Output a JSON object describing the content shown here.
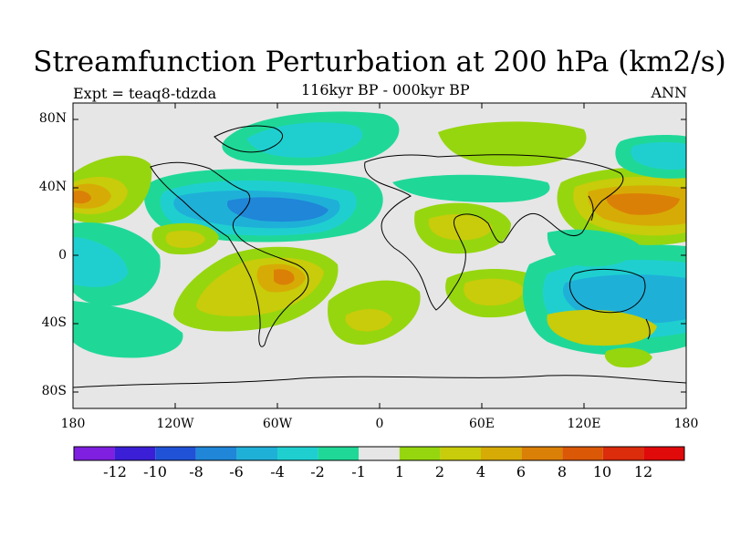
{
  "title": "Streamfunction Perturbation at 200 hPa (km2/s)",
  "subtitle": "116kyr BP - 000kyr BP",
  "left_label": "Expt = teaq8-tdzda",
  "right_label": "ANN",
  "lat_labels": [
    "80N",
    "40N",
    "0",
    "40S",
    "80S"
  ],
  "lon_labels": [
    "180",
    "120W",
    "60W",
    "0",
    "60E",
    "120E",
    "180"
  ],
  "colorbar": {
    "labels": [
      "-12",
      "-10",
      "-8",
      "-6",
      "-4",
      "-2",
      "-1",
      "1",
      "2",
      "4",
      "6",
      "8",
      "10",
      "12"
    ],
    "colors": [
      "#7f1fe0",
      "#3a1fd6",
      "#1f52d6",
      "#1f86d8",
      "#1fb0d8",
      "#1fcfd0",
      "#1fd898",
      "#e6e6e6",
      "#96d60f",
      "#c8cc0a",
      "#d7ab06",
      "#db8006",
      "#db5806",
      "#db2c0c",
      "#e00a0a"
    ]
  },
  "colors": {
    "land_outline": "#000000",
    "neutral": "#e6e6e6"
  }
}
